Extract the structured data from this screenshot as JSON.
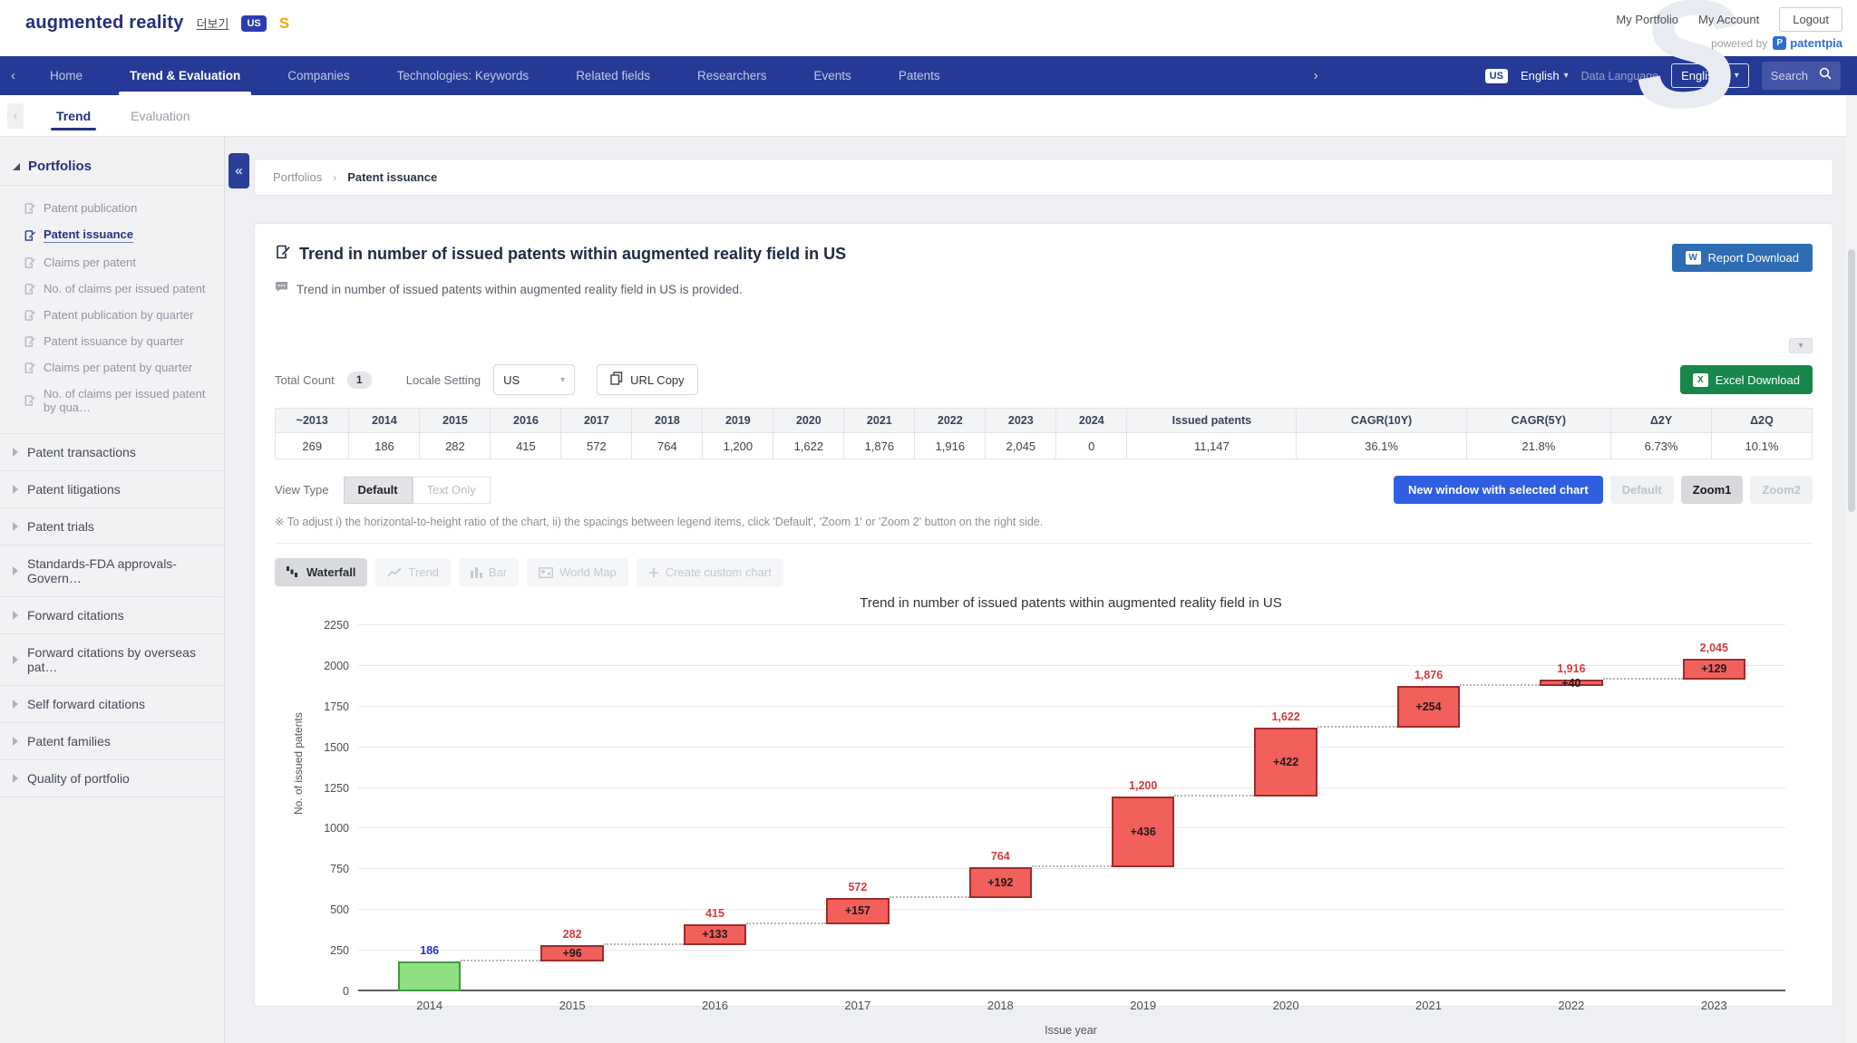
{
  "header": {
    "project_title": "augmented reality",
    "more_link": "더보기",
    "country_badge": "US",
    "s_badge": "S",
    "watermark": "S",
    "links": [
      "My Portfolio",
      "My Account"
    ],
    "logout_label": "Logout",
    "powered_by_label": "powered by",
    "brand_initial": "P",
    "brand_name": "patentpia"
  },
  "nav": {
    "items": [
      {
        "label": "Home",
        "active": false
      },
      {
        "label": "Trend & Evaluation",
        "active": true
      },
      {
        "label": "Companies",
        "active": false
      },
      {
        "label": "Technologies: Keywords",
        "active": false
      },
      {
        "label": "Related fields",
        "active": false
      },
      {
        "label": "Researchers",
        "active": false
      },
      {
        "label": "Events",
        "active": false
      },
      {
        "label": "Patents",
        "active": false
      }
    ],
    "prev_chevron": "‹",
    "next_chevron": "›",
    "country_badge": "US",
    "ui_language": "English",
    "data_language_label": "Data Language",
    "data_language_value": "English",
    "search_label": "Search"
  },
  "tabs": [
    {
      "label": "Trend",
      "active": true
    },
    {
      "label": "Evaluation",
      "active": false
    }
  ],
  "sidebar": {
    "group_title": "Portfolios",
    "collapse_glyph": "«",
    "items": [
      {
        "label": "Patent publication",
        "active": false
      },
      {
        "label": "Patent issuance",
        "active": true
      },
      {
        "label": "Claims per patent",
        "active": false
      },
      {
        "label": "No. of claims per issued patent",
        "active": false
      },
      {
        "label": "Patent publication by quarter",
        "active": false
      },
      {
        "label": "Patent issuance by quarter",
        "active": false
      },
      {
        "label": "Claims per patent by quarter",
        "active": false
      },
      {
        "label": "No. of claims per issued patent by qua…",
        "active": false
      }
    ],
    "sections": [
      "Patent transactions",
      "Patent litigations",
      "Patent trials",
      "Standards-FDA approvals-Govern…",
      "Forward citations",
      "Forward citations by overseas pat…",
      "Self forward citations",
      "Patent families",
      "Quality of portfolio"
    ]
  },
  "breadcrumb": {
    "parent": "Portfolios",
    "current": "Patent issuance"
  },
  "main": {
    "title": "Trend in number of issued patents within augmented reality field in US",
    "subtitle": "Trend in number of issued patents within augmented reality field in US is provided.",
    "report_button": "Report Download",
    "excel_button": "Excel Download",
    "total_count_label": "Total Count",
    "total_count_value": "1",
    "locale_label": "Locale Setting",
    "locale_value": "US",
    "url_copy_label": "URL Copy",
    "view_type_label": "View Type",
    "view_type_options": [
      {
        "label": "Default",
        "active": true
      },
      {
        "label": "Text Only",
        "active": false
      }
    ],
    "note": "※ To adjust i) the horizontal-to-height ratio of the chart, ii) the spacings between legend items, click 'Default', 'Zoom 1' or 'Zoom 2' button on the right side.",
    "new_window_button": "New window with selected chart",
    "zoom_buttons": [
      {
        "label": "Default",
        "active": false
      },
      {
        "label": "Zoom1",
        "active": true
      },
      {
        "label": "Zoom2",
        "active": false
      }
    ],
    "chart_tools": [
      {
        "label": "Waterfall",
        "active": true,
        "icon": "waterfall"
      },
      {
        "label": "Trend",
        "active": false,
        "icon": "trend"
      },
      {
        "label": "Bar",
        "active": false,
        "icon": "bar"
      },
      {
        "label": "World Map",
        "active": false,
        "icon": "worldmap"
      },
      {
        "label": "Create custom chart",
        "active": false,
        "icon": "custom"
      }
    ],
    "footer_brand": "patentpia"
  },
  "summary_table": {
    "columns": [
      "~2013",
      "2014",
      "2015",
      "2016",
      "2017",
      "2018",
      "2019",
      "2020",
      "2021",
      "2022",
      "2023",
      "2024",
      "Issued patents",
      "CAGR(10Y)",
      "CAGR(5Y)",
      "Δ2Y",
      "Δ2Q"
    ],
    "values": [
      "269",
      "186",
      "282",
      "415",
      "572",
      "764",
      "1,200",
      "1,622",
      "1,876",
      "1,916",
      "2,045",
      "0",
      "11,147",
      "36.1%",
      "21.8%",
      "6.73%",
      "10.1%"
    ]
  },
  "chart_data": {
    "type": "waterfall",
    "title": "Trend in number of issued patents within augmented reality field in US",
    "xlabel": "Issue year",
    "ylabel": "No. of issued patents",
    "ylim": [
      0,
      2250
    ],
    "ytick_step": 250,
    "grid": true,
    "categories": [
      "2014",
      "2015",
      "2016",
      "2017",
      "2018",
      "2019",
      "2020",
      "2021",
      "2022",
      "2023"
    ],
    "totals": [
      186,
      282,
      415,
      572,
      764,
      1200,
      1622,
      1876,
      1916,
      2045
    ],
    "deltas": [
      null,
      96,
      133,
      157,
      192,
      436,
      422,
      254,
      40,
      129
    ],
    "colors": {
      "base_fill": "#8fdf82",
      "base_border": "#3f9b3f",
      "increase_fill": "#f2605c",
      "increase_border": "#9e2b2b",
      "total_label": "#d5393b",
      "base_label": "#2633cc"
    }
  }
}
